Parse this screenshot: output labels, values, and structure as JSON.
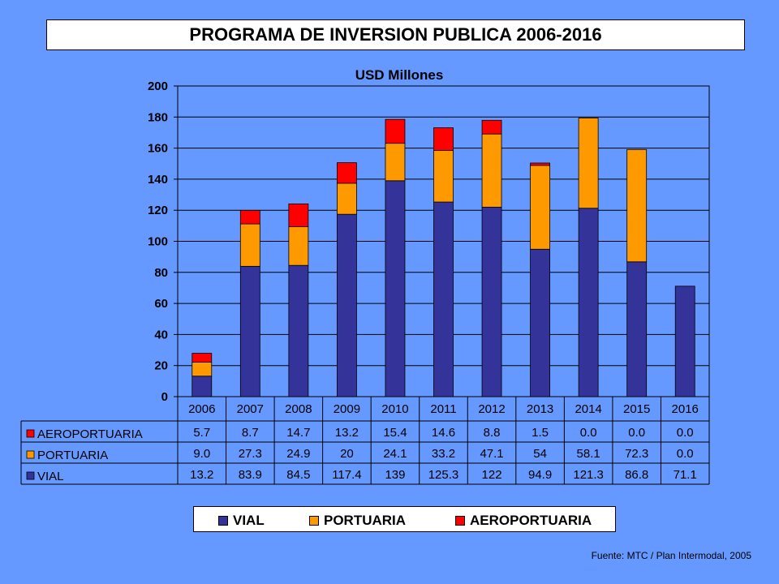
{
  "title": "PROGRAMA DE INVERSION PUBLICA 2006-2016",
  "source": "Fuente: MTC / Plan Intermodal, 2005",
  "colors": {
    "background": "#6699FF",
    "vial": "#333399",
    "portuaria": "#FF9900",
    "aeroportuaria": "#FF0000"
  },
  "legend": {
    "vial": "VIAL",
    "portuaria": "PORTUARIA",
    "aeroportuaria": "AEROPORTUARIA"
  },
  "chart_data": {
    "type": "bar",
    "stacked": true,
    "subtitle": "USD Millones",
    "categories": [
      "2006",
      "2007",
      "2008",
      "2009",
      "2010",
      "2011",
      "2012",
      "2013",
      "2014",
      "2015",
      "2016"
    ],
    "yticks": [
      "0",
      "20",
      "40",
      "60",
      "80",
      "100",
      "120",
      "140",
      "160",
      "180",
      "200"
    ],
    "ylim": [
      0,
      200
    ],
    "grid": true,
    "series": [
      {
        "key": "vial",
        "name": "VIAL",
        "values": [
          13.2,
          83.9,
          84.5,
          117.4,
          139,
          125.3,
          122,
          94.9,
          121.3,
          86.8,
          71.1
        ],
        "labels": [
          "13.2",
          "83.9",
          "84.5",
          "117.4",
          "139",
          "125.3",
          "122",
          "94.9",
          "121.3",
          "86.8",
          "71.1"
        ]
      },
      {
        "key": "portuaria",
        "name": "PORTUARIA",
        "values": [
          9.0,
          27.3,
          24.9,
          20,
          24.1,
          33.2,
          47.1,
          54,
          58.1,
          72.3,
          0.0
        ],
        "labels": [
          "9.0",
          "27.3",
          "24.9",
          "20",
          "24.1",
          "33.2",
          "47.1",
          "54",
          "58.1",
          "72.3",
          "0.0"
        ]
      },
      {
        "key": "aeroportuaria",
        "name": "AEROPORTUARIA",
        "values": [
          5.7,
          8.7,
          14.7,
          13.2,
          15.4,
          14.6,
          8.8,
          1.5,
          0.0,
          0.0,
          0.0
        ],
        "labels": [
          "5.7",
          "8.7",
          "14.7",
          "13.2",
          "15.4",
          "14.6",
          "8.8",
          "1.5",
          "0.0",
          "0.0",
          "0.0"
        ]
      }
    ],
    "table_row_order": [
      "aeroportuaria",
      "portuaria",
      "vial"
    ]
  }
}
